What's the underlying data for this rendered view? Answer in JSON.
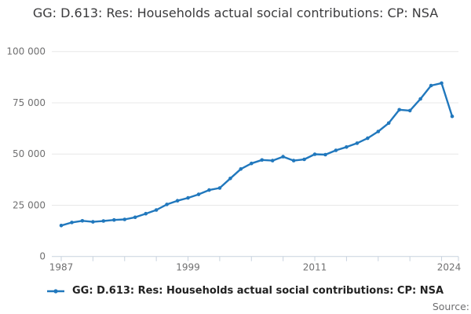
{
  "title": "GG: D.613: Res: Households actual social contributions: CP: NSA",
  "legend": {
    "label": "GG: D.613: Res: Households actual social contributions: CP: NSA"
  },
  "source_label": "Source:",
  "colors": {
    "line": "#2178bd",
    "grid": "#e8e8e8",
    "axis": "#c7d2de",
    "tick_text": "#707071"
  },
  "chart_data": {
    "type": "line",
    "title": "GG: D.613: Res: Households actual social contributions: CP: NSA",
    "xlabel": "",
    "ylabel": "",
    "x": [
      1987,
      1988,
      1989,
      1990,
      1991,
      1992,
      1993,
      1994,
      1995,
      1996,
      1997,
      1998,
      1999,
      2000,
      2001,
      2002,
      2003,
      2004,
      2005,
      2006,
      2007,
      2008,
      2009,
      2010,
      2011,
      2012,
      2013,
      2014,
      2015,
      2016,
      2017,
      2018,
      2019,
      2020,
      2021,
      2022,
      2023,
      2024
    ],
    "series": [
      {
        "name": "GG: D.613: Res: Households actual social contributions: CP: NSA",
        "values": [
          15100,
          16600,
          17400,
          16900,
          17300,
          17800,
          18100,
          19100,
          20900,
          22700,
          25400,
          27200,
          28600,
          30300,
          32400,
          33400,
          38100,
          42700,
          45400,
          47100,
          46800,
          48700,
          46800,
          47400,
          49900,
          49700,
          51800,
          53400,
          55300,
          57700,
          61000,
          65100,
          71600,
          71200,
          76900,
          83400,
          84600,
          68400
        ]
      }
    ],
    "xlim": [
      1987,
      2024
    ],
    "ylim": [
      0,
      100000
    ],
    "ytick_values": [
      0,
      25000,
      50000,
      75000,
      100000
    ],
    "ytick_labels": [
      "0",
      "25 000",
      "50 000",
      "75 000",
      "100 000"
    ],
    "xtick_label_years": [
      1987,
      1999,
      2011,
      2024
    ],
    "xtick_labels": [
      "1987",
      "1999",
      "2011",
      "2024"
    ],
    "minor_xtick_step_years": 3,
    "grid": "horizontal",
    "markers": true,
    "legend_position": "bottom-left"
  }
}
